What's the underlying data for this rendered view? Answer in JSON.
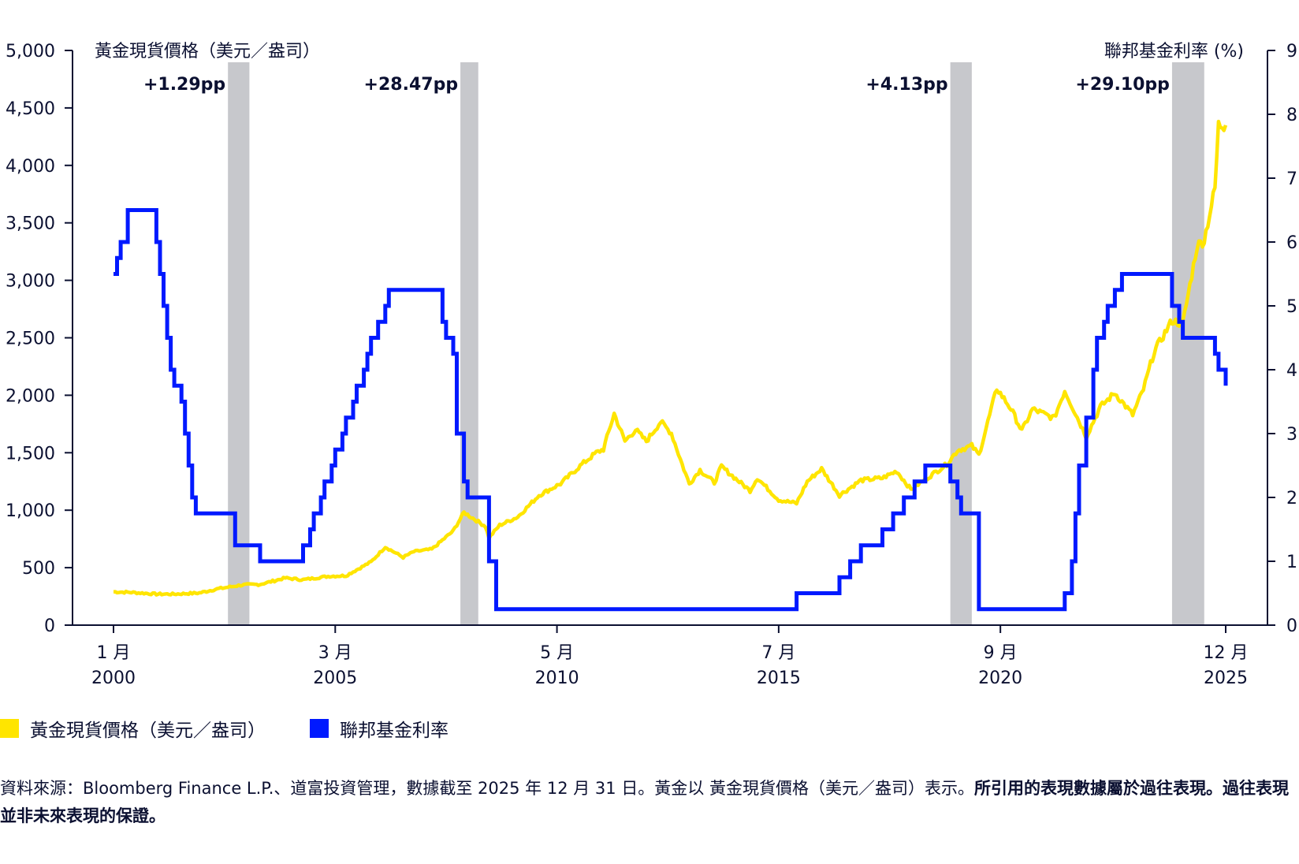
{
  "chart_data": {
    "type": "line",
    "y_left_title": "黃金現貨價格（美元／盎司）",
    "y_right_title": "聯邦基金利率 (%)",
    "y_left_range": [
      0,
      5000
    ],
    "y_right_range": [
      0,
      9
    ],
    "y_left_ticks": [
      "0",
      "500",
      "1,000",
      "1,500",
      "2,000",
      "2,500",
      "3,000",
      "3,500",
      "4,000",
      "4,500",
      "5,000"
    ],
    "y_right_ticks": [
      "0",
      "1",
      "2",
      "3",
      "4",
      "5",
      "6",
      "7",
      "8",
      "9"
    ],
    "x_ticks": [
      {
        "date": "2000-01",
        "month": "1 月",
        "year": "2000"
      },
      {
        "date": "2005-03",
        "month": "3 月",
        "year": "2005"
      },
      {
        "date": "2010-05",
        "month": "5 月",
        "year": "2010"
      },
      {
        "date": "2015-07",
        "month": "7 月",
        "year": "2015"
      },
      {
        "date": "2020-09",
        "month": "9 月",
        "year": "2020"
      },
      {
        "date": "2025-12",
        "month": "12 月",
        "year": "2025"
      }
    ],
    "shaded_periods": [
      {
        "start": "2002-09",
        "end": "2003-03",
        "label": "+1.29pp"
      },
      {
        "start": "2008-02",
        "end": "2008-07",
        "label": "+28.47pp"
      },
      {
        "start": "2019-07",
        "end": "2020-01",
        "label": "+4.13pp"
      },
      {
        "start": "2024-09",
        "end": "2025-06",
        "label": "+29.10pp"
      }
    ],
    "series": [
      {
        "name": "黃金現貨價格（美元／盎司）",
        "axis": "left",
        "color": "#ffe500",
        "points": [
          [
            "2000-01",
            290
          ],
          [
            "2000-06",
            285
          ],
          [
            "2001-01",
            270
          ],
          [
            "2001-06",
            270
          ],
          [
            "2002-01",
            280
          ],
          [
            "2002-06",
            315
          ],
          [
            "2003-01",
            350
          ],
          [
            "2003-06",
            355
          ],
          [
            "2004-01",
            410
          ],
          [
            "2004-06",
            395
          ],
          [
            "2005-01",
            425
          ],
          [
            "2005-06",
            430
          ],
          [
            "2006-01",
            550
          ],
          [
            "2006-05",
            680
          ],
          [
            "2006-10",
            590
          ],
          [
            "2007-01",
            640
          ],
          [
            "2007-06",
            660
          ],
          [
            "2007-12",
            820
          ],
          [
            "2008-03",
            980
          ],
          [
            "2008-09",
            860
          ],
          [
            "2008-10",
            760
          ],
          [
            "2009-01",
            870
          ],
          [
            "2009-06",
            940
          ],
          [
            "2009-12",
            1130
          ],
          [
            "2010-06",
            1230
          ],
          [
            "2010-12",
            1400
          ],
          [
            "2011-04",
            1500
          ],
          [
            "2011-06",
            1530
          ],
          [
            "2011-09",
            1840
          ],
          [
            "2011-12",
            1600
          ],
          [
            "2012-03",
            1700
          ],
          [
            "2012-06",
            1600
          ],
          [
            "2012-10",
            1770
          ],
          [
            "2013-01",
            1670
          ],
          [
            "2013-04",
            1400
          ],
          [
            "2013-06",
            1230
          ],
          [
            "2013-09",
            1350
          ],
          [
            "2014-01",
            1240
          ],
          [
            "2014-03",
            1380
          ],
          [
            "2014-06",
            1300
          ],
          [
            "2014-11",
            1170
          ],
          [
            "2015-01",
            1280
          ],
          [
            "2015-07",
            1090
          ],
          [
            "2015-12",
            1060
          ],
          [
            "2016-03",
            1250
          ],
          [
            "2016-07",
            1360
          ],
          [
            "2016-12",
            1130
          ],
          [
            "2017-06",
            1260
          ],
          [
            "2017-12",
            1280
          ],
          [
            "2018-04",
            1340
          ],
          [
            "2018-08",
            1180
          ],
          [
            "2019-01",
            1290
          ],
          [
            "2019-06",
            1400
          ],
          [
            "2019-09",
            1520
          ],
          [
            "2020-01",
            1560
          ],
          [
            "2020-03",
            1480
          ],
          [
            "2020-08",
            2060
          ],
          [
            "2020-12",
            1880
          ],
          [
            "2021-03",
            1690
          ],
          [
            "2021-06",
            1880
          ],
          [
            "2021-12",
            1800
          ],
          [
            "2022-03",
            2040
          ],
          [
            "2022-09",
            1640
          ],
          [
            "2023-01",
            1900
          ],
          [
            "2023-05",
            2020
          ],
          [
            "2023-10",
            1830
          ],
          [
            "2024-01",
            2050
          ],
          [
            "2024-04",
            2380
          ],
          [
            "2024-09",
            2650
          ],
          [
            "2024-12",
            2620
          ],
          [
            "2025-04",
            3300
          ],
          [
            "2025-06",
            3350
          ],
          [
            "2025-09",
            3800
          ],
          [
            "2025-10",
            4350
          ],
          [
            "2025-12",
            4350
          ]
        ]
      },
      {
        "name": "聯邦基金利率",
        "axis": "right",
        "color": "#0019ff",
        "step_points": [
          [
            "2000-01",
            5.5
          ],
          [
            "2000-02",
            5.75
          ],
          [
            "2000-03",
            6.0
          ],
          [
            "2000-05",
            6.5
          ],
          [
            "2001-01",
            6.0
          ],
          [
            "2001-02",
            5.5
          ],
          [
            "2001-03",
            5.0
          ],
          [
            "2001-04",
            4.5
          ],
          [
            "2001-05",
            4.0
          ],
          [
            "2001-06",
            3.75
          ],
          [
            "2001-08",
            3.5
          ],
          [
            "2001-09",
            3.0
          ],
          [
            "2001-10",
            2.5
          ],
          [
            "2001-11",
            2.0
          ],
          [
            "2001-12",
            1.75
          ],
          [
            "2002-11",
            1.25
          ],
          [
            "2003-06",
            1.0
          ],
          [
            "2004-06",
            1.25
          ],
          [
            "2004-08",
            1.5
          ],
          [
            "2004-09",
            1.75
          ],
          [
            "2004-11",
            2.0
          ],
          [
            "2004-12",
            2.25
          ],
          [
            "2005-02",
            2.5
          ],
          [
            "2005-03",
            2.75
          ],
          [
            "2005-05",
            3.0
          ],
          [
            "2005-06",
            3.25
          ],
          [
            "2005-08",
            3.5
          ],
          [
            "2005-09",
            3.75
          ],
          [
            "2005-11",
            4.0
          ],
          [
            "2005-12",
            4.25
          ],
          [
            "2006-01",
            4.5
          ],
          [
            "2006-03",
            4.75
          ],
          [
            "2006-05",
            5.0
          ],
          [
            "2006-06",
            5.25
          ],
          [
            "2007-09",
            4.75
          ],
          [
            "2007-10",
            4.5
          ],
          [
            "2007-12",
            4.25
          ],
          [
            "2008-01",
            3.0
          ],
          [
            "2008-03",
            2.25
          ],
          [
            "2008-04",
            2.0
          ],
          [
            "2008-10",
            1.0
          ],
          [
            "2008-12",
            0.25
          ],
          [
            "2015-12",
            0.5
          ],
          [
            "2016-12",
            0.75
          ],
          [
            "2017-03",
            1.0
          ],
          [
            "2017-06",
            1.25
          ],
          [
            "2017-12",
            1.5
          ],
          [
            "2018-03",
            1.75
          ],
          [
            "2018-06",
            2.0
          ],
          [
            "2018-09",
            2.25
          ],
          [
            "2018-12",
            2.5
          ],
          [
            "2019-07",
            2.25
          ],
          [
            "2019-09",
            2.0
          ],
          [
            "2019-10",
            1.75
          ],
          [
            "2020-03",
            0.25
          ],
          [
            "2022-03",
            0.5
          ],
          [
            "2022-05",
            1.0
          ],
          [
            "2022-06",
            1.75
          ],
          [
            "2022-07",
            2.5
          ],
          [
            "2022-09",
            3.25
          ],
          [
            "2022-11",
            4.0
          ],
          [
            "2022-12",
            4.5
          ],
          [
            "2023-02",
            4.75
          ],
          [
            "2023-03",
            5.0
          ],
          [
            "2023-05",
            5.25
          ],
          [
            "2023-07",
            5.5
          ],
          [
            "2024-09",
            5.0
          ],
          [
            "2024-11",
            4.75
          ],
          [
            "2024-12",
            4.5
          ],
          [
            "2025-09",
            4.25
          ],
          [
            "2025-10",
            4.0
          ],
          [
            "2025-12",
            3.75
          ]
        ]
      }
    ],
    "grid": false
  },
  "legend": {
    "items": [
      {
        "label": "黃金現貨價格（美元／盎司）",
        "color": "#ffe500"
      },
      {
        "label": "聯邦基金利率",
        "color": "#0019ff"
      }
    ]
  },
  "footnote": {
    "text": "資料來源：Bloomberg Finance L.P.、道富投資管理，數據截至 2025 年 12 月 31 日。黃金以 黃金現貨價格（美元／盎司）表示。",
    "bold": "所引用的表現數據屬於過往表現。過往表現並非未來表現的保證。"
  },
  "colors": {
    "text": "#0b1031",
    "shade": "#c7c8cc",
    "gold": "#ffe500",
    "rate": "#0019ff"
  }
}
